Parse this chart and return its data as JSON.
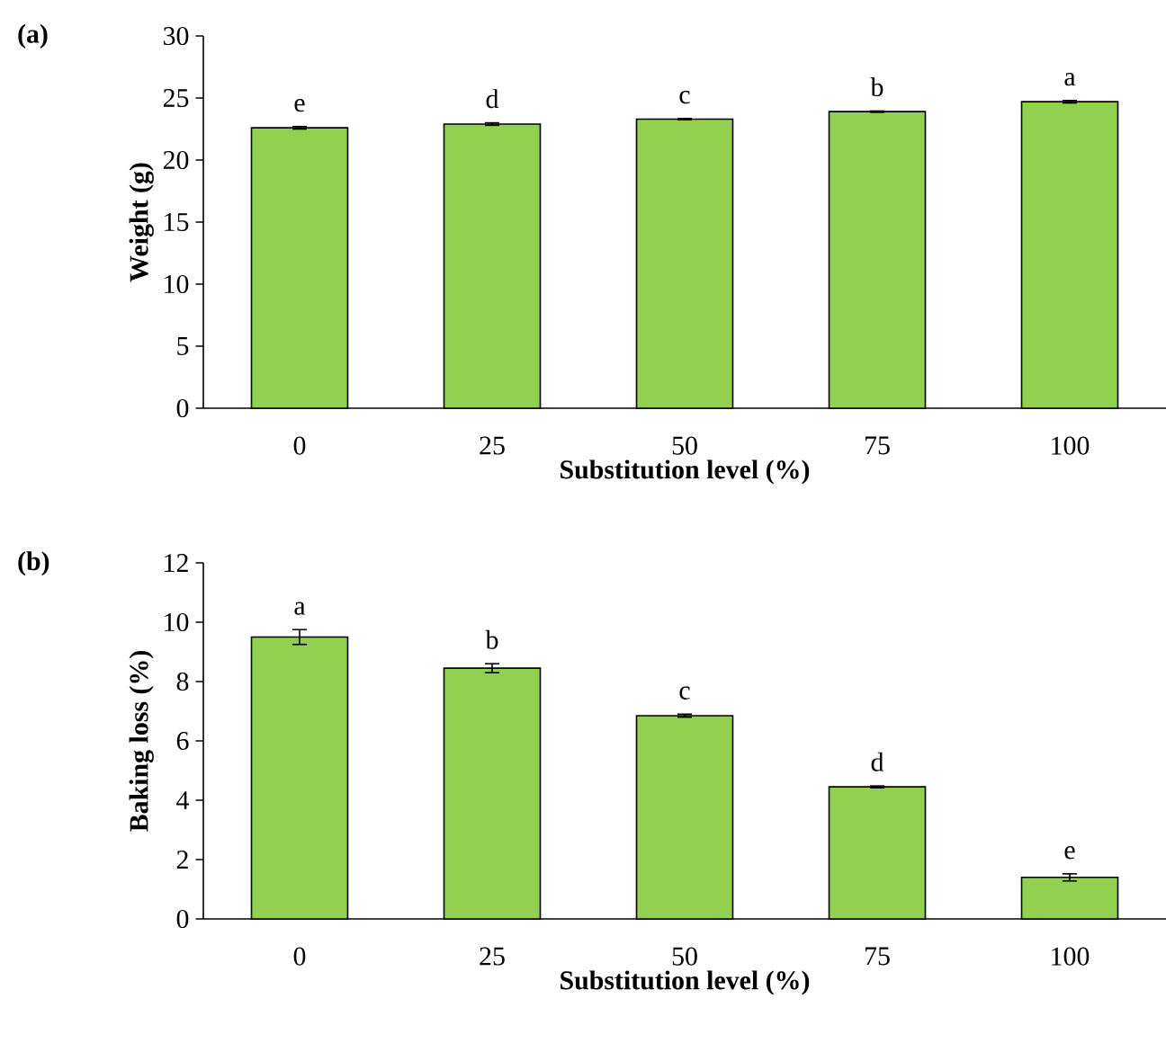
{
  "chart_data": [
    {
      "type": "bar",
      "title": "(a)",
      "xlabel": "Substitution level (%)",
      "ylabel": "Weight  (g)",
      "categories": [
        "0",
        "25",
        "50",
        "75",
        "100"
      ],
      "values": [
        22.6,
        22.9,
        23.3,
        23.9,
        24.7
      ],
      "errors": [
        0.1,
        0.1,
        0.05,
        0.05,
        0.1
      ],
      "color": "#92d050",
      "ylim": [
        0,
        30
      ],
      "yticks": [
        0,
        5,
        10,
        15,
        20,
        25,
        30
      ],
      "annotations": [
        {
          "text": "e",
          "x": "0",
          "y": 22.7
        },
        {
          "text": "d",
          "x": "25",
          "y": 23.0
        },
        {
          "text": "c",
          "x": "50",
          "y": 23.35
        },
        {
          "text": "b",
          "x": "75",
          "y": 23.95
        },
        {
          "text": "a",
          "x": "100",
          "y": 24.8
        }
      ]
    },
    {
      "type": "bar",
      "title": "(b)",
      "xlabel": "Substitution level (%)",
      "ylabel": "Baking loss (%)",
      "categories": [
        "0",
        "25",
        "50",
        "75",
        "100"
      ],
      "values": [
        9.5,
        8.45,
        6.85,
        4.45,
        1.4
      ],
      "errors": [
        0.25,
        0.15,
        0.05,
        0.03,
        0.12
      ],
      "color": "#92d050",
      "ylim": [
        0,
        12
      ],
      "yticks": [
        0,
        2,
        4,
        6,
        8,
        10,
        12
      ],
      "annotations": [
        {
          "text": "a",
          "x": "0",
          "y": 9.75
        },
        {
          "text": "b",
          "x": "25",
          "y": 8.6
        },
        {
          "text": "c",
          "x": "50",
          "y": 6.9
        },
        {
          "text": "d",
          "x": "75",
          "y": 4.48
        },
        {
          "text": "e",
          "x": "100",
          "y": 1.52
        }
      ]
    }
  ]
}
